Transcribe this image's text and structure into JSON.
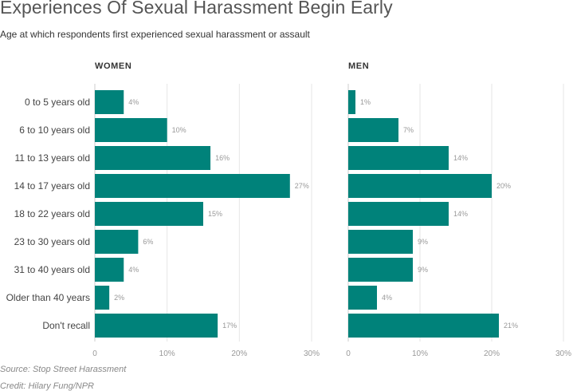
{
  "title": "Experiences Of Sexual Harassment Begin Early",
  "subtitle": "Age at which respondents first experienced sexual harassment or assault",
  "footer": {
    "source": "Source: Stop Street Harassment",
    "credit": "Credit: Hilary Fung/NPR"
  },
  "colors": {
    "bar": "#00827a",
    "grid": "#e6e6e6",
    "axis": "#cccccc"
  },
  "chart_data": [
    {
      "type": "bar",
      "orientation": "horizontal",
      "title": "WOMEN",
      "categories": [
        "0 to 5 years old",
        "6 to 10 years old",
        "11 to 13 years old",
        "14 to 17 years old",
        "18 to 22 years old",
        "23 to 30 years old",
        "31 to 40 years old",
        "Older than 40 years",
        "Don't recall"
      ],
      "values": [
        4,
        10,
        16,
        27,
        15,
        6,
        4,
        2,
        17
      ],
      "value_labels": [
        "4%",
        "10%",
        "16%",
        "27%",
        "15%",
        "6%",
        "4%",
        "2%",
        "17%"
      ],
      "xlim": [
        0,
        30
      ],
      "ticks": [
        0,
        10,
        20,
        30
      ],
      "tick_labels": [
        "0",
        "10%",
        "20%",
        "30%"
      ],
      "grid": true
    },
    {
      "type": "bar",
      "orientation": "horizontal",
      "title": "MEN",
      "categories": [
        "0 to 5 years old",
        "6 to 10 years old",
        "11 to 13 years old",
        "14 to 17 years old",
        "18 to 22 years old",
        "23 to 30 years old",
        "31 to 40 years old",
        "Older than 40 years",
        "Don't recall"
      ],
      "values": [
        1,
        7,
        14,
        20,
        14,
        9,
        9,
        4,
        21
      ],
      "value_labels": [
        "1%",
        "7%",
        "14%",
        "20%",
        "14%",
        "9%",
        "9%",
        "4%",
        "21%"
      ],
      "xlim": [
        0,
        30
      ],
      "ticks": [
        0,
        10,
        20,
        30
      ],
      "tick_labels": [
        "0",
        "10%",
        "20%",
        "30%"
      ],
      "grid": true
    }
  ]
}
